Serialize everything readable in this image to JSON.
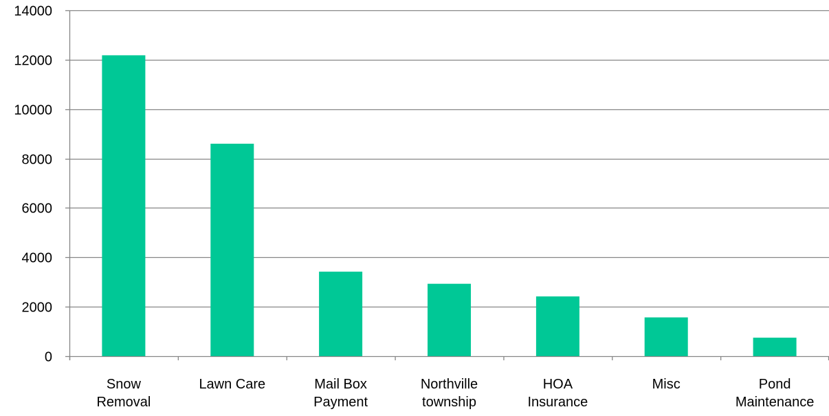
{
  "chart_data": {
    "type": "bar",
    "categories": [
      [
        "Snow",
        "Removal"
      ],
      [
        "Lawn Care"
      ],
      [
        "Mail Box",
        "Payment"
      ],
      [
        "Northville",
        "township"
      ],
      [
        "HOA",
        "Insurance"
      ],
      [
        "Misc"
      ],
      [
        "Pond",
        "Maintenance"
      ]
    ],
    "values": [
      12180,
      8600,
      3420,
      2930,
      2420,
      1570,
      750
    ],
    "title": "",
    "xlabel": "",
    "ylabel": "",
    "ylim": [
      0,
      14000
    ],
    "yticks": [
      0,
      2000,
      4000,
      6000,
      8000,
      10000,
      12000,
      14000
    ],
    "grid": true,
    "legend": "none",
    "bar_color": "#00C896",
    "gridline_color": "#868686",
    "axis_color": "#868686"
  }
}
